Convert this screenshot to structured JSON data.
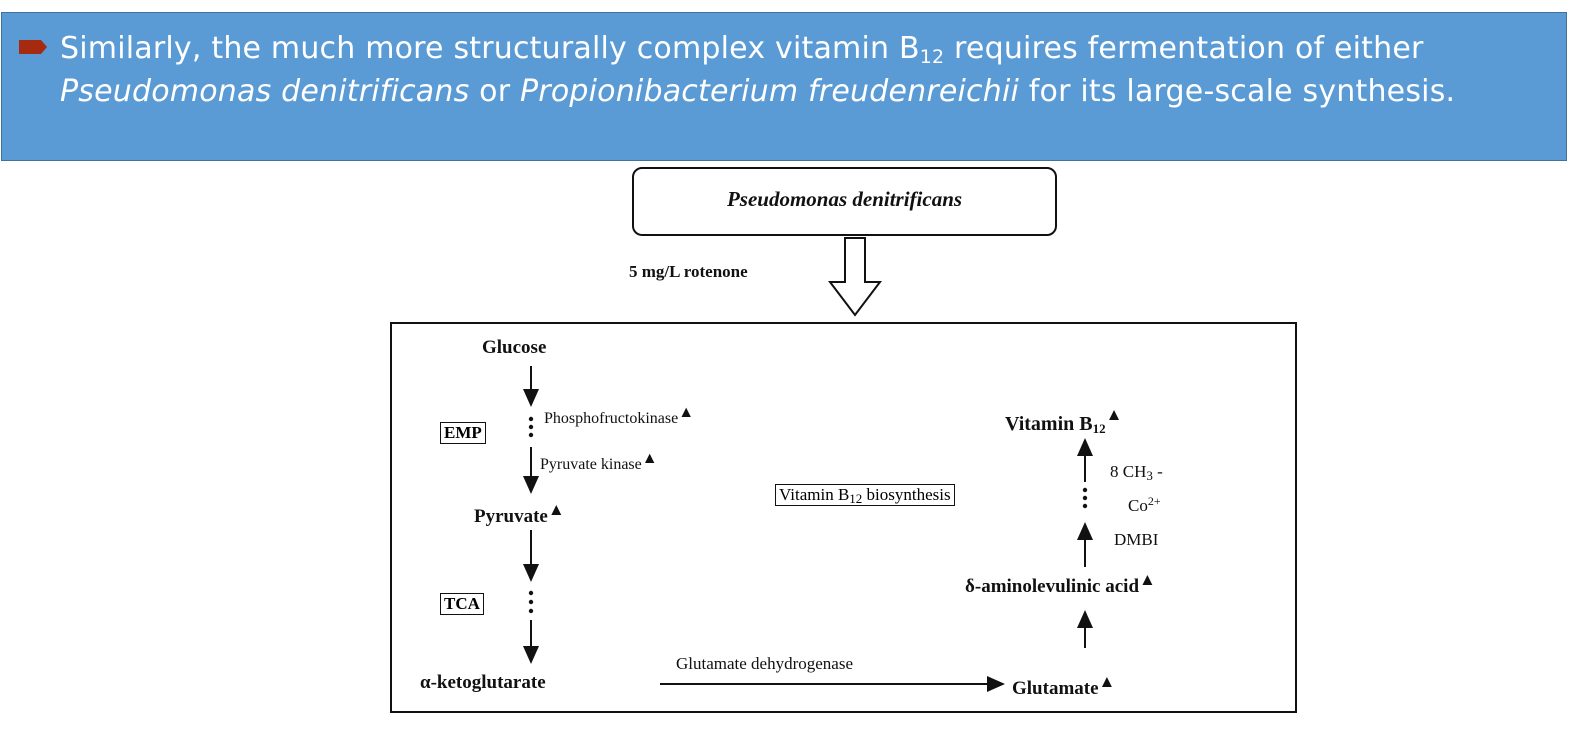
{
  "slide": {
    "text_before_sub": "Similarly, the much more structurally complex vitamin B",
    "subscript": "12",
    "text_after_sub": " requires fermentation of either ",
    "species1": "Pseudomonas denitrificans",
    "or": " or ",
    "species2": "Propionibacterium freudenreichii",
    "text_end": " for its large-scale synthesis.",
    "bullet_color": "#a52a0f",
    "background_color": "#5b9bd5"
  },
  "diagram": {
    "organism": "Pseudomonas denitrificans",
    "treatment": "5 mg/L rotenone",
    "glucose": "Glucose",
    "emp": "EMP",
    "phosphofructokinase": "Phosphofructokinase",
    "pyruvate_kinase": "Pyruvate kinase",
    "pyruvate": "Pyruvate",
    "tca": "TCA",
    "alpha_kg": "α-ketoglutarate",
    "glutamate_dh": "Glutamate dehydrogenase",
    "glutamate": "Glutamate",
    "ala": "δ-aminolevulinic acid",
    "vitamin_b12": "Vitamin B",
    "b12_sub": "12",
    "biosynthesis_prefix": "Vitamin B",
    "biosynthesis_suffix": " biosynthesis",
    "ch3": "8 CH",
    "ch3_sub": "3",
    "ch3_dash": " -",
    "co": "Co",
    "co_sup": "2+",
    "dmbi": "DMBI",
    "upregulated_marker": "▲"
  }
}
